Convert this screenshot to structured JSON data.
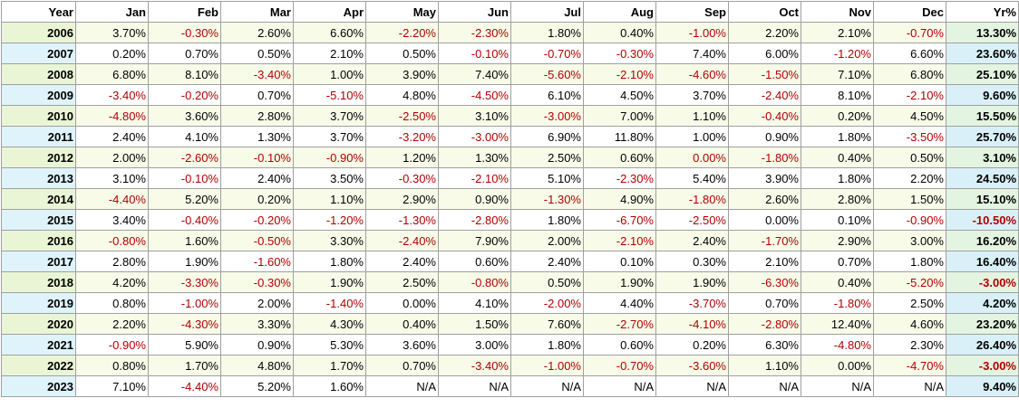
{
  "table": {
    "headers": [
      "Year",
      "Jan",
      "Feb",
      "Mar",
      "Apr",
      "May",
      "Jun",
      "Jul",
      "Aug",
      "Sep",
      "Oct",
      "Nov",
      "Dec",
      "Yr%"
    ],
    "rows": [
      {
        "year": "2006",
        "values": [
          "3.70%",
          "-0.30%",
          "2.60%",
          "6.60%",
          "-2.20%",
          "-2.30%",
          "1.80%",
          "0.40%",
          "-1.00%",
          "2.20%",
          "2.10%",
          "-0.70%",
          "13.30%"
        ]
      },
      {
        "year": "2007",
        "values": [
          "0.20%",
          "0.70%",
          "0.50%",
          "2.10%",
          "0.50%",
          "-0.10%",
          "-0.70%",
          "-0.30%",
          "7.40%",
          "6.00%",
          "-1.20%",
          "6.60%",
          "23.60%"
        ]
      },
      {
        "year": "2008",
        "values": [
          "6.80%",
          "8.10%",
          "-3.40%",
          "1.00%",
          "3.90%",
          "7.40%",
          "-5.60%",
          "-2.10%",
          "-4.60%",
          "-1.50%",
          "7.10%",
          "6.80%",
          "25.10%"
        ]
      },
      {
        "year": "2009",
        "values": [
          "-3.40%",
          "-0.20%",
          "0.70%",
          "-5.10%",
          "4.80%",
          "-4.50%",
          "6.10%",
          "4.50%",
          "3.70%",
          "-2.40%",
          "8.10%",
          "-2.10%",
          "9.60%"
        ]
      },
      {
        "year": "2010",
        "values": [
          "-4.80%",
          "3.60%",
          "2.80%",
          "3.70%",
          "-2.50%",
          "3.10%",
          "-3.00%",
          "7.00%",
          "1.10%",
          "-0.40%",
          "0.20%",
          "4.50%",
          "15.50%"
        ]
      },
      {
        "year": "2011",
        "values": [
          "2.40%",
          "4.10%",
          "1.30%",
          "3.70%",
          "-3.20%",
          "-3.00%",
          "6.90%",
          "11.80%",
          "1.00%",
          "0.90%",
          "1.80%",
          "-3.50%",
          "25.70%"
        ]
      },
      {
        "year": "2012",
        "values": [
          "2.00%",
          "-2.60%",
          "-0.10%",
          "-0.90%",
          "1.20%",
          "1.30%",
          "2.50%",
          "0.60%",
          "0.00%",
          "-1.80%",
          "0.40%",
          "0.50%",
          "3.10%"
        ]
      },
      {
        "year": "2013",
        "values": [
          "3.10%",
          "-0.10%",
          "2.40%",
          "3.50%",
          "-0.30%",
          "-2.10%",
          "5.10%",
          "-2.30%",
          "5.40%",
          "3.90%",
          "1.80%",
          "2.20%",
          "24.50%"
        ]
      },
      {
        "year": "2014",
        "values": [
          "-4.40%",
          "5.20%",
          "0.20%",
          "1.10%",
          "2.90%",
          "0.90%",
          "-1.30%",
          "4.90%",
          "-1.80%",
          "2.60%",
          "2.80%",
          "1.50%",
          "15.10%"
        ]
      },
      {
        "year": "2015",
        "values": [
          "3.40%",
          "-0.40%",
          "-0.20%",
          "-1.20%",
          "-1.30%",
          "-2.80%",
          "1.80%",
          "-6.70%",
          "-2.50%",
          "0.00%",
          "0.10%",
          "-0.90%",
          "-10.50%"
        ]
      },
      {
        "year": "2016",
        "values": [
          "-0.80%",
          "1.60%",
          "-0.50%",
          "3.30%",
          "-2.40%",
          "7.90%",
          "2.00%",
          "-2.10%",
          "2.40%",
          "-1.70%",
          "2.90%",
          "3.00%",
          "16.20%"
        ]
      },
      {
        "year": "2017",
        "values": [
          "2.80%",
          "1.90%",
          "-1.60%",
          "1.80%",
          "2.40%",
          "0.60%",
          "2.40%",
          "0.10%",
          "0.30%",
          "2.10%",
          "0.70%",
          "1.80%",
          "16.40%"
        ]
      },
      {
        "year": "2018",
        "values": [
          "4.20%",
          "-3.30%",
          "-0.30%",
          "1.90%",
          "2.50%",
          "-0.80%",
          "0.50%",
          "1.90%",
          "1.90%",
          "-6.30%",
          "0.40%",
          "-5.20%",
          "-3.00%"
        ]
      },
      {
        "year": "2019",
        "values": [
          "0.80%",
          "-1.00%",
          "2.00%",
          "-1.40%",
          "0.00%",
          "4.10%",
          "-2.00%",
          "4.40%",
          "-3.70%",
          "0.70%",
          "-1.80%",
          "2.50%",
          "4.20%"
        ]
      },
      {
        "year": "2020",
        "values": [
          "2.20%",
          "-4.30%",
          "3.30%",
          "4.30%",
          "0.40%",
          "1.50%",
          "7.60%",
          "-2.70%",
          "-4.10%",
          "-2.80%",
          "12.40%",
          "4.60%",
          "23.20%"
        ]
      },
      {
        "year": "2021",
        "values": [
          "-0.90%",
          "5.90%",
          "0.90%",
          "5.30%",
          "3.60%",
          "3.00%",
          "1.80%",
          "0.60%",
          "0.20%",
          "6.30%",
          "-4.80%",
          "2.30%",
          "26.40%"
        ]
      },
      {
        "year": "2022",
        "values": [
          "0.80%",
          "1.70%",
          "4.80%",
          "1.70%",
          "0.70%",
          "-3.40%",
          "-1.00%",
          "-0.70%",
          "-3.60%",
          "1.10%",
          "0.00%",
          "-4.70%",
          "-3.00%"
        ]
      },
      {
        "year": "2023",
        "values": [
          "7.10%",
          "-4.40%",
          "5.20%",
          "1.60%",
          "N/A",
          "N/A",
          "N/A",
          "N/A",
          "N/A",
          "N/A",
          "N/A",
          "N/A",
          "9.40%"
        ]
      }
    ]
  },
  "colors": {
    "negative": "#b00000",
    "positive": "#000000",
    "odd_row_bg": "#f7fbe8",
    "even_row_bg": "#ffffff",
    "odd_year_bg": "#eaf5d6",
    "even_year_bg": "#dff3fa",
    "odd_total_bg": "#e3f4e0",
    "even_total_bg": "#d9f0f8"
  }
}
